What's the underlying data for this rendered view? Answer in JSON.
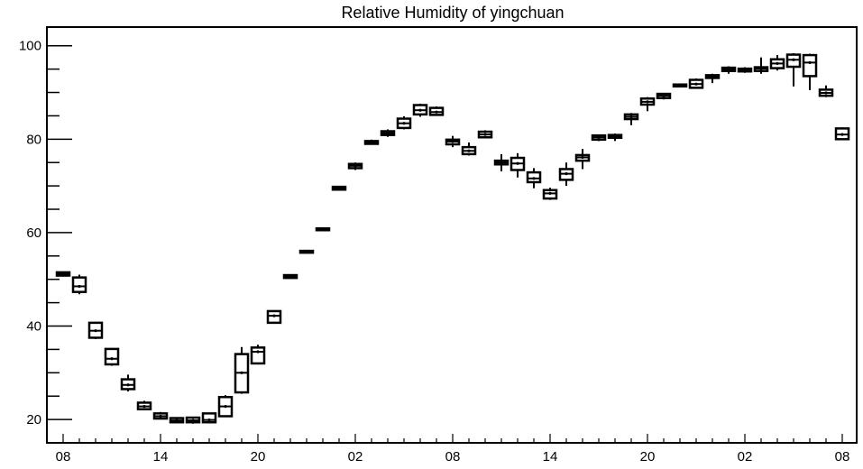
{
  "chart_data": {
    "type": "box",
    "title": "Relative Humidity of yingchuan",
    "xlabel": "",
    "ylabel": "",
    "ylim": [
      15,
      104
    ],
    "yticks": [
      20,
      40,
      60,
      80,
      100
    ],
    "xtick_labels": [
      "08",
      "14",
      "20",
      "02",
      "08",
      "14",
      "20",
      "02",
      "08"
    ],
    "xtick_hours": [
      0,
      6,
      12,
      18,
      24,
      30,
      36,
      42,
      48
    ],
    "grid": false,
    "legend": "none",
    "boxes": [
      {
        "hour": 0,
        "q1": 50.8,
        "median": 51.2,
        "q3": 51.5,
        "low": 50.6,
        "high": 51.7
      },
      {
        "hour": 1,
        "q1": 47.3,
        "median": 48.5,
        "q3": 50.4,
        "low": 46.8,
        "high": 51.0
      },
      {
        "hour": 2,
        "q1": 37.5,
        "median": 39.0,
        "q3": 40.7,
        "low": 37.2,
        "high": 40.9
      },
      {
        "hour": 3,
        "q1": 31.8,
        "median": 33.0,
        "q3": 35.1,
        "low": 31.5,
        "high": 35.3
      },
      {
        "hour": 4,
        "q1": 26.5,
        "median": 27.4,
        "q3": 28.6,
        "low": 26.0,
        "high": 29.6
      },
      {
        "hour": 5,
        "q1": 22.2,
        "median": 22.8,
        "q3": 23.6,
        "low": 22.0,
        "high": 24.0
      },
      {
        "hour": 6,
        "q1": 20.2,
        "median": 20.7,
        "q3": 21.3,
        "low": 20.0,
        "high": 21.6
      },
      {
        "hour": 7,
        "q1": 19.4,
        "median": 19.8,
        "q3": 20.3,
        "low": 19.2,
        "high": 20.5
      },
      {
        "hour": 8,
        "q1": 19.4,
        "median": 19.8,
        "q3": 20.4,
        "low": 19.1,
        "high": 20.6
      },
      {
        "hour": 9,
        "q1": 19.4,
        "median": 19.9,
        "q3": 21.3,
        "low": 19.2,
        "high": 21.5
      },
      {
        "hour": 10,
        "q1": 20.7,
        "median": 22.8,
        "q3": 24.8,
        "low": 20.5,
        "high": 25.2
      },
      {
        "hour": 11,
        "q1": 25.8,
        "median": 30.0,
        "q3": 34.0,
        "low": 25.5,
        "high": 35.5
      },
      {
        "hour": 12,
        "q1": 32.0,
        "median": 34.5,
        "q3": 35.4,
        "low": 31.8,
        "high": 36.0
      },
      {
        "hour": 13,
        "q1": 40.7,
        "median": 42.2,
        "q3": 43.2,
        "low": 40.5,
        "high": 43.4
      },
      {
        "hour": 14,
        "q1": 50.3,
        "median": 50.6,
        "q3": 50.9,
        "low": 50.2,
        "high": 51.0
      },
      {
        "hour": 15,
        "q1": 55.7,
        "median": 55.9,
        "q3": 56.1,
        "low": 55.6,
        "high": 56.2
      },
      {
        "hour": 16,
        "q1": 60.7,
        "median": 60.8,
        "q3": 60.9,
        "low": 60.6,
        "high": 61.0
      },
      {
        "hour": 17,
        "q1": 69.2,
        "median": 69.5,
        "q3": 69.8,
        "low": 69.0,
        "high": 70.0
      },
      {
        "hour": 18,
        "q1": 73.8,
        "median": 74.3,
        "q3": 74.7,
        "low": 73.4,
        "high": 75.0
      },
      {
        "hour": 19,
        "q1": 79.0,
        "median": 79.3,
        "q3": 79.6,
        "low": 78.8,
        "high": 79.9
      },
      {
        "hour": 20,
        "q1": 80.9,
        "median": 81.3,
        "q3": 81.7,
        "low": 80.5,
        "high": 82.1
      },
      {
        "hour": 21,
        "q1": 82.4,
        "median": 83.4,
        "q3": 84.4,
        "low": 82.1,
        "high": 84.9
      },
      {
        "hour": 22,
        "q1": 85.3,
        "median": 86.2,
        "q3": 87.3,
        "low": 84.8,
        "high": 87.6
      },
      {
        "hour": 23,
        "q1": 85.2,
        "median": 85.8,
        "q3": 86.7,
        "low": 85.0,
        "high": 87.0
      },
      {
        "hour": 24,
        "q1": 78.9,
        "median": 79.5,
        "q3": 79.9,
        "low": 78.3,
        "high": 80.7
      },
      {
        "hour": 25,
        "q1": 76.8,
        "median": 77.5,
        "q3": 78.3,
        "low": 76.5,
        "high": 79.3
      },
      {
        "hour": 26,
        "q1": 80.4,
        "median": 81.0,
        "q3": 81.6,
        "low": 80.2,
        "high": 81.9
      },
      {
        "hour": 27,
        "q1": 74.6,
        "median": 75.0,
        "q3": 75.4,
        "low": 73.1,
        "high": 76.8
      },
      {
        "hour": 28,
        "q1": 73.4,
        "median": 74.8,
        "q3": 76.0,
        "low": 71.8,
        "high": 77.0
      },
      {
        "hour": 29,
        "q1": 70.8,
        "median": 71.6,
        "q3": 72.9,
        "low": 69.5,
        "high": 73.8
      },
      {
        "hour": 30,
        "q1": 67.3,
        "median": 68.4,
        "q3": 69.1,
        "low": 67.0,
        "high": 69.6
      },
      {
        "hour": 31,
        "q1": 71.3,
        "median": 72.6,
        "q3": 73.6,
        "low": 70.0,
        "high": 75.0
      },
      {
        "hour": 32,
        "q1": 75.4,
        "median": 76.1,
        "q3": 76.6,
        "low": 73.6,
        "high": 77.9
      },
      {
        "hour": 33,
        "q1": 79.9,
        "median": 80.4,
        "q3": 80.8,
        "low": 79.6,
        "high": 81.0
      },
      {
        "hour": 34,
        "q1": 80.3,
        "median": 80.6,
        "q3": 80.9,
        "low": 79.6,
        "high": 81.2
      },
      {
        "hour": 35,
        "q1": 84.3,
        "median": 84.8,
        "q3": 85.3,
        "low": 83.0,
        "high": 85.6
      },
      {
        "hour": 36,
        "q1": 87.4,
        "median": 88.0,
        "q3": 88.7,
        "low": 86.0,
        "high": 89.0
      },
      {
        "hour": 37,
        "q1": 88.8,
        "median": 89.3,
        "q3": 89.7,
        "low": 88.5,
        "high": 89.9
      },
      {
        "hour": 38,
        "q1": 91.3,
        "median": 91.5,
        "q3": 91.7,
        "low": 91.2,
        "high": 91.8
      },
      {
        "hour": 39,
        "q1": 91.0,
        "median": 91.8,
        "q3": 92.7,
        "low": 90.8,
        "high": 93.0
      },
      {
        "hour": 40,
        "q1": 93.1,
        "median": 93.4,
        "q3": 93.7,
        "low": 92.0,
        "high": 94.0
      },
      {
        "hour": 41,
        "q1": 94.6,
        "median": 95.0,
        "q3": 95.3,
        "low": 94.0,
        "high": 95.6
      },
      {
        "hour": 42,
        "q1": 94.5,
        "median": 94.8,
        "q3": 95.1,
        "low": 94.2,
        "high": 95.4
      },
      {
        "hour": 43,
        "q1": 94.6,
        "median": 95.1,
        "q3": 95.4,
        "low": 94.0,
        "high": 97.5
      },
      {
        "hour": 44,
        "q1": 95.2,
        "median": 96.2,
        "q3": 97.1,
        "low": 94.7,
        "high": 98.0
      },
      {
        "hour": 45,
        "q1": 95.5,
        "median": 97.0,
        "q3": 98.1,
        "low": 91.3,
        "high": 98.4
      },
      {
        "hour": 46,
        "q1": 93.5,
        "median": 96.4,
        "q3": 98.0,
        "low": 90.5,
        "high": 98.3
      },
      {
        "hour": 47,
        "q1": 89.3,
        "median": 89.9,
        "q3": 90.6,
        "low": 89.0,
        "high": 91.5
      },
      {
        "hour": 48,
        "q1": 80.0,
        "median": 81.0,
        "q3": 82.3,
        "low": 79.8,
        "high": 82.5
      }
    ]
  }
}
